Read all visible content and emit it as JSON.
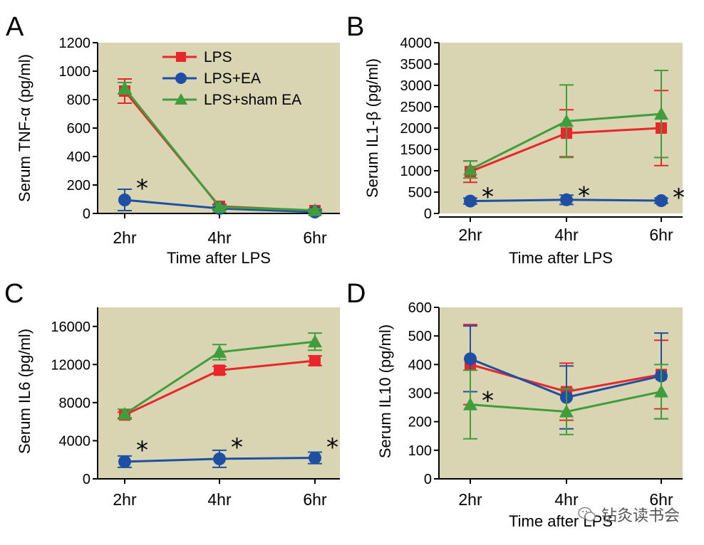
{
  "watermark": "钻灸读书会",
  "colors": {
    "plot_bg": "#d9d5b3",
    "LPS": "#e8262b",
    "LPS+EA": "#1f4fa3",
    "LPS+sham EA": "#3f9d3c"
  },
  "chart_data": [
    {
      "panel": "A",
      "type": "line",
      "categories": [
        "2hr",
        "4hr",
        "6hr"
      ],
      "xlabel": "Time after LPS",
      "ylabel": "Serum TNF-α (pg/ml)",
      "ylim": [
        0,
        1200
      ],
      "yticks": [
        0,
        200,
        400,
        600,
        800,
        1000,
        1200
      ],
      "legend": {
        "placement": "top-right",
        "entries": [
          "LPS",
          "LPS+EA",
          "LPS+sham EA"
        ]
      },
      "series": [
        {
          "name": "LPS",
          "marker": "square",
          "values": [
            860,
            50,
            20
          ],
          "errors": [
            85,
            15,
            10
          ]
        },
        {
          "name": "LPS+EA",
          "marker": "circle",
          "values": [
            95,
            35,
            10
          ],
          "errors": [
            75,
            10,
            8
          ]
        },
        {
          "name": "LPS+sham EA",
          "marker": "triangle",
          "values": [
            880,
            45,
            22
          ],
          "errors": [
            40,
            12,
            10
          ]
        }
      ],
      "annotations": [
        {
          "text": "*",
          "category": "2hr",
          "value": 190
        }
      ]
    },
    {
      "panel": "B",
      "type": "line",
      "categories": [
        "2hr",
        "4hr",
        "6hr"
      ],
      "xlabel": "Time after LPS",
      "ylabel": "Serum IL1-β (pg/ml)",
      "ylim": [
        0,
        4000
      ],
      "yticks": [
        0,
        500,
        1000,
        1500,
        2000,
        2500,
        3000,
        3500,
        4000
      ],
      "series": [
        {
          "name": "LPS",
          "marker": "square",
          "values": [
            980,
            1880,
            2000
          ],
          "errors": [
            250,
            550,
            880
          ]
        },
        {
          "name": "LPS+EA",
          "marker": "circle",
          "values": [
            290,
            320,
            300
          ],
          "errors": [
            70,
            110,
            60
          ]
        },
        {
          "name": "LPS+sham EA",
          "marker": "triangle",
          "values": [
            1030,
            2160,
            2330
          ],
          "errors": [
            200,
            850,
            1020
          ]
        }
      ],
      "annotations": [
        {
          "text": "*",
          "category": "2hr",
          "value": 430
        },
        {
          "text": "*",
          "category": "4hr",
          "value": 460
        },
        {
          "text": "*",
          "category": "6hr",
          "value": 420
        }
      ]
    },
    {
      "panel": "C",
      "type": "line",
      "categories": [
        "2hr",
        "4hr",
        "6hr"
      ],
      "xlabel": "",
      "ylabel": "Serum IL6 (pg/ml)",
      "ylim": [
        0,
        18000
      ],
      "yticks": [
        0,
        4000,
        8000,
        12000,
        16000
      ],
      "series": [
        {
          "name": "LPS",
          "marker": "square",
          "values": [
            6700,
            11400,
            12400
          ],
          "errors": [
            300,
            400,
            500
          ]
        },
        {
          "name": "LPS+EA",
          "marker": "circle",
          "values": [
            1800,
            2100,
            2200
          ],
          "errors": [
            600,
            900,
            600
          ]
        },
        {
          "name": "LPS+sham EA",
          "marker": "triangle",
          "values": [
            6800,
            13300,
            14400
          ],
          "errors": [
            500,
            800,
            900
          ]
        }
      ],
      "annotations": [
        {
          "text": "*",
          "category": "2hr",
          "value": 3200
        },
        {
          "text": "*",
          "category": "4hr",
          "value": 3500
        },
        {
          "text": "*",
          "category": "6hr",
          "value": 3500
        }
      ]
    },
    {
      "panel": "D",
      "type": "line",
      "categories": [
        "2hr",
        "4hr",
        "6hr"
      ],
      "xlabel": "Time after LPS",
      "ylabel": "Serum IL10  (pg/ml)",
      "ylim": [
        0,
        600
      ],
      "yticks": [
        0,
        100,
        200,
        300,
        400,
        500,
        600
      ],
      "series": [
        {
          "name": "LPS",
          "marker": "square",
          "values": [
            400,
            305,
            365
          ],
          "errors": [
            140,
            100,
            120
          ]
        },
        {
          "name": "LPS+EA",
          "marker": "circle",
          "values": [
            420,
            285,
            360
          ],
          "errors": [
            115,
            110,
            150
          ]
        },
        {
          "name": "LPS+sham EA",
          "marker": "triangle",
          "values": [
            260,
            235,
            305
          ],
          "errors": [
            120,
            80,
            95
          ]
        }
      ],
      "annotations": [
        {
          "text": "*",
          "category": "2hr",
          "value": 280
        }
      ]
    }
  ]
}
